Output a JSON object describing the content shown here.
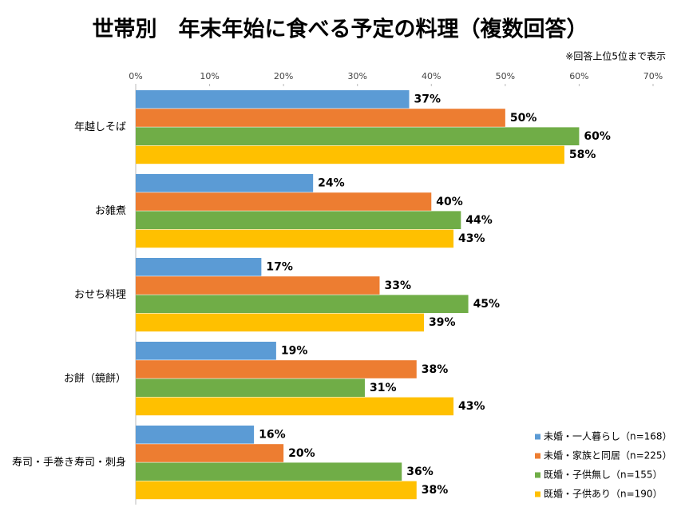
{
  "chart_data": {
    "type": "bar",
    "orientation": "horizontal",
    "title": "世帯別　年末年始に食べる予定の料理（複数回答）",
    "note": "※回答上位5位まで表示",
    "categories": [
      "年越しそば",
      "お雑煮",
      "おせち料理",
      "お餅（鏡餅）",
      "寿司・手巻き寿司・刺身"
    ],
    "series": [
      {
        "name": "未婚・一人暮らし（n=168）",
        "color": "#5b9bd5",
        "label_color": "#2e75b6",
        "values": [
          37,
          24,
          17,
          19,
          16
        ],
        "value_labels": [
          "37%",
          "24%",
          "17%",
          "19%",
          "16%"
        ]
      },
      {
        "name": "未婚・家族と同居（n=225）",
        "color": "#ed7d31",
        "label_color": "#c55a11",
        "values": [
          50,
          40,
          33,
          38,
          20
        ],
        "value_labels": [
          "50%",
          "40%",
          "33%",
          "38%",
          "20%"
        ]
      },
      {
        "name": "既婚・子供無し（n=155）",
        "color": "#70ad47",
        "label_color": "#548235",
        "values": [
          60,
          44,
          45,
          31,
          36
        ],
        "value_labels": [
          "60%",
          "44%",
          "45%",
          "31%",
          "36%"
        ]
      },
      {
        "name": "既婚・子供あり（n=190）",
        "color": "#ffc000",
        "label_color": "#bf9000",
        "values": [
          58,
          43,
          39,
          43,
          38
        ],
        "value_labels": [
          "58%",
          "43%",
          "39%",
          "43%",
          "38%"
        ]
      }
    ],
    "xlim": [
      0,
      70
    ],
    "xticks": [
      {
        "value": 0,
        "label": "0%"
      },
      {
        "value": 10,
        "label": "10%"
      },
      {
        "value": 20,
        "label": "20%"
      },
      {
        "value": 30,
        "label": "30%"
      },
      {
        "value": 40,
        "label": "40%"
      },
      {
        "value": 50,
        "label": "50%"
      },
      {
        "value": 60,
        "label": "60%"
      },
      {
        "value": 70,
        "label": "70%"
      }
    ],
    "grid": false,
    "legend": "bottom-right"
  }
}
